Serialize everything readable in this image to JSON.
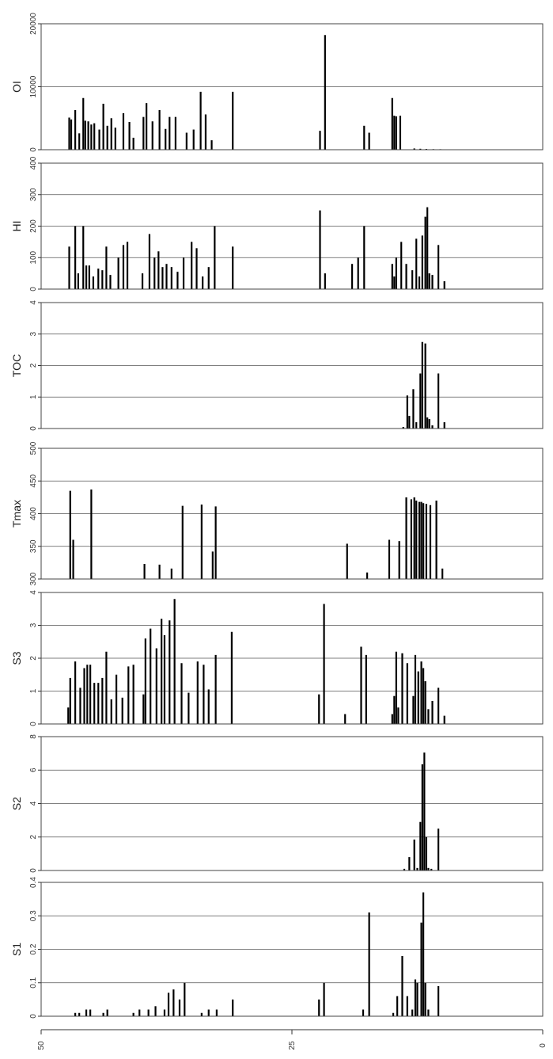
{
  "chart_data": [
    {
      "type": "bar",
      "ylabel": "OI",
      "ylim": [
        0,
        20000
      ],
      "yticks": [
        0,
        10000,
        20000
      ],
      "grid": true,
      "x": [
        47.2,
        47.0,
        46.6,
        46.2,
        45.8,
        45.6,
        45.3,
        45.0,
        44.7,
        44.2,
        43.8,
        43.4,
        43.0,
        42.6,
        41.8,
        41.2,
        40.8,
        39.8,
        39.5,
        38.9,
        38.2,
        37.6,
        37.2,
        36.6,
        35.5,
        34.8,
        34.1,
        33.6,
        33.0,
        30.9,
        22.2,
        21.7,
        17.8,
        17.3,
        15.0,
        14.8,
        14.6,
        14.2,
        12.8,
        12.2,
        11.6,
        10.9,
        10.2
      ],
      "values": [
        5100,
        4800,
        6300,
        2600,
        8200,
        4600,
        4500,
        4000,
        4200,
        3200,
        7300,
        3800,
        5000,
        3500,
        5800,
        4400,
        1900,
        5200,
        7400,
        4500,
        6300,
        3300,
        5200,
        5200,
        2700,
        3200,
        9200,
        5600,
        1500,
        9200,
        3000,
        18200,
        3800,
        2700,
        8200,
        5400,
        5300,
        5400,
        200,
        150,
        120,
        90,
        80
      ]
    },
    {
      "type": "bar",
      "ylabel": "HI",
      "ylim": [
        0,
        400
      ],
      "yticks": [
        0,
        100,
        200,
        300,
        400
      ],
      "grid": true,
      "x": [
        47.2,
        46.6,
        46.3,
        45.8,
        45.5,
        45.2,
        44.8,
        44.3,
        43.9,
        43.5,
        43.1,
        42.3,
        41.8,
        41.4,
        39.9,
        39.2,
        38.7,
        38.3,
        37.9,
        37.5,
        37.0,
        36.4,
        35.8,
        35.0,
        34.5,
        33.9,
        33.3,
        32.7,
        30.9,
        22.2,
        21.7,
        19.0,
        18.4,
        17.8,
        15.0,
        14.8,
        14.6,
        14.1,
        13.6,
        13.0,
        12.6,
        12.3,
        12.0,
        11.7,
        11.5,
        11.3,
        11.0,
        10.4,
        9.8
      ],
      "values": [
        135,
        200,
        50,
        200,
        75,
        75,
        40,
        65,
        60,
        135,
        45,
        100,
        140,
        150,
        50,
        175,
        100,
        120,
        70,
        80,
        70,
        55,
        100,
        150,
        130,
        40,
        70,
        200,
        135,
        250,
        50,
        80,
        100,
        200,
        80,
        40,
        100,
        150,
        80,
        60,
        160,
        40,
        170,
        230,
        260,
        50,
        45,
        140,
        25
      ]
    },
    {
      "type": "bar",
      "ylabel": "TOC",
      "ylim": [
        0,
        4
      ],
      "yticks": [
        0,
        1,
        2,
        3,
        4
      ],
      "grid": true,
      "x": [
        13.9,
        13.5,
        13.3,
        12.9,
        12.6,
        12.2,
        12.0,
        11.7,
        11.5,
        11.3,
        11.0,
        10.4,
        9.8
      ],
      "values": [
        0.05,
        1.05,
        0.4,
        1.25,
        0.2,
        1.75,
        2.75,
        2.7,
        0.35,
        0.3,
        0.1,
        1.75,
        0.2
      ]
    },
    {
      "type": "bar",
      "ylabel": "Tmax",
      "ylim": [
        300,
        500
      ],
      "yticks": [
        300,
        350,
        400,
        450,
        500
      ],
      "grid": true,
      "x": [
        47.1,
        46.8,
        45.0,
        39.7,
        38.2,
        37.0,
        35.9,
        34.0,
        32.9,
        32.6,
        19.5,
        17.5,
        15.3,
        14.3,
        13.6,
        13.1,
        12.8,
        12.6,
        12.3,
        12.1,
        11.9,
        11.6,
        11.2,
        10.6,
        10.0
      ],
      "values": [
        435,
        360,
        437,
        323,
        322,
        316,
        412,
        414,
        342,
        411,
        354,
        310,
        360,
        358,
        425,
        422,
        425,
        420,
        418,
        418,
        416,
        415,
        413,
        420,
        316
      ]
    },
    {
      "type": "bar",
      "ylabel": "S3",
      "ylim": [
        0,
        4
      ],
      "yticks": [
        0,
        1,
        2,
        3,
        4
      ],
      "grid": true,
      "x": [
        47.3,
        47.1,
        46.6,
        46.1,
        45.7,
        45.4,
        45.1,
        44.7,
        44.3,
        43.9,
        43.5,
        43.0,
        42.5,
        41.9,
        41.3,
        40.8,
        39.8,
        39.6,
        39.1,
        38.5,
        38.0,
        37.7,
        37.2,
        36.7,
        36.0,
        35.3,
        34.4,
        33.8,
        33.3,
        32.6,
        31.0,
        22.3,
        21.8,
        19.7,
        18.1,
        17.6,
        15.0,
        14.8,
        14.6,
        14.4,
        14.0,
        13.5,
        12.9,
        12.7,
        12.4,
        12.1,
        11.9,
        11.7,
        11.4,
        11.0,
        10.4,
        9.8
      ],
      "values": [
        0.5,
        1.4,
        1.9,
        1.1,
        1.7,
        1.8,
        1.8,
        1.25,
        1.25,
        1.4,
        2.2,
        0.75,
        1.5,
        0.8,
        1.75,
        1.8,
        0.9,
        2.6,
        2.9,
        2.3,
        3.2,
        2.7,
        3.15,
        3.8,
        1.85,
        0.95,
        1.9,
        1.8,
        1.05,
        2.1,
        2.8,
        0.9,
        3.65,
        0.3,
        2.35,
        2.1,
        0.3,
        0.85,
        2.2,
        0.5,
        2.15,
        1.85,
        0.85,
        2.1,
        1.6,
        1.9,
        1.7,
        1.3,
        0.45,
        0.7,
        1.1,
        0.25
      ]
    },
    {
      "type": "bar",
      "ylabel": "S2",
      "ylim": [
        0,
        8
      ],
      "yticks": [
        0,
        2,
        4,
        6,
        8
      ],
      "grid": true,
      "x": [
        13.8,
        13.3,
        12.8,
        12.5,
        12.2,
        12.0,
        11.8,
        11.6,
        11.4,
        11.1,
        10.4
      ],
      "values": [
        0.1,
        0.8,
        1.85,
        0.15,
        2.9,
        6.35,
        7.05,
        2.0,
        0.15,
        0.1,
        2.5
      ]
    },
    {
      "type": "bar",
      "ylabel": "S1",
      "ylim": [
        0,
        0.4
      ],
      "yticks": [
        0,
        0.1,
        0.2,
        0.3,
        0.4
      ],
      "grid": true,
      "x": [
        46.6,
        46.2,
        45.5,
        45.1,
        43.8,
        43.4,
        40.8,
        40.2,
        39.3,
        38.6,
        37.7,
        37.3,
        36.8,
        36.2,
        35.7,
        34.0,
        33.3,
        32.5,
        30.9,
        22.3,
        21.8,
        17.9,
        17.3,
        14.9,
        14.5,
        14.0,
        13.5,
        13.0,
        12.7,
        12.5,
        12.1,
        11.9,
        11.7,
        11.4,
        10.4
      ],
      "values": [
        0.01,
        0.01,
        0.02,
        0.02,
        0.01,
        0.02,
        0.01,
        0.02,
        0.02,
        0.03,
        0.02,
        0.07,
        0.08,
        0.05,
        0.1,
        0.01,
        0.02,
        0.02,
        0.05,
        0.05,
        0.1,
        0.02,
        0.31,
        0.01,
        0.06,
        0.18,
        0.06,
        0.02,
        0.11,
        0.1,
        0.28,
        0.37,
        0.1,
        0.02,
        0.09
      ]
    }
  ],
  "x_axis": {
    "xlim": [
      50,
      0
    ],
    "ticks": [
      50,
      25,
      0
    ],
    "tick_labels": [
      "50",
      "25",
      "0"
    ]
  }
}
